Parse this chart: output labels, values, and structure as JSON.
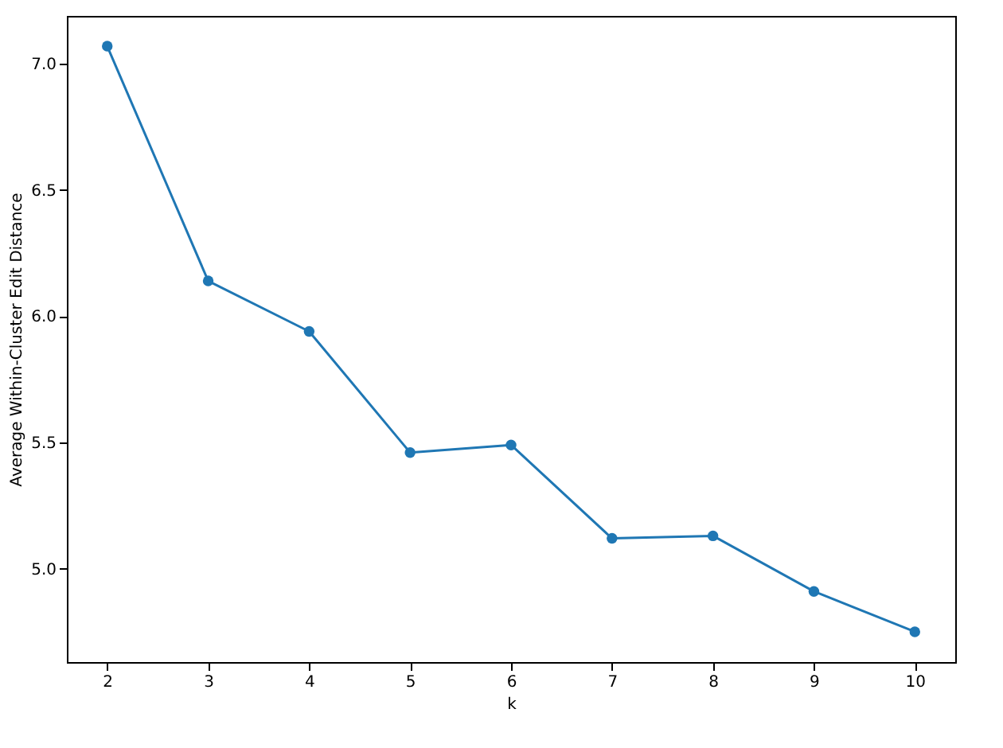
{
  "chart_data": {
    "type": "line",
    "xlabel": "k",
    "ylabel": "Average Within-Cluster Edit Distance",
    "x": [
      2,
      3,
      4,
      5,
      6,
      7,
      8,
      9,
      10
    ],
    "series": [
      {
        "color": "#1f77b4",
        "values": [
          7.07,
          6.14,
          5.94,
          5.46,
          5.49,
          5.12,
          5.13,
          4.91,
          4.75
        ]
      }
    ],
    "xlim": [
      1.6,
      10.4
    ],
    "ylim": [
      4.63,
      7.19
    ],
    "xticks": [
      2,
      3,
      4,
      5,
      6,
      7,
      8,
      9,
      10
    ],
    "yticks": [
      {
        "value": 5,
        "label": "5.0"
      },
      {
        "value": 5.5,
        "label": "5.5"
      },
      {
        "value": 6,
        "label": "6.0"
      },
      {
        "value": 6.5,
        "label": "6.5"
      },
      {
        "value": 7,
        "label": "7.0"
      }
    ],
    "grid": false,
    "marker": "circle",
    "line_style": "solid"
  }
}
